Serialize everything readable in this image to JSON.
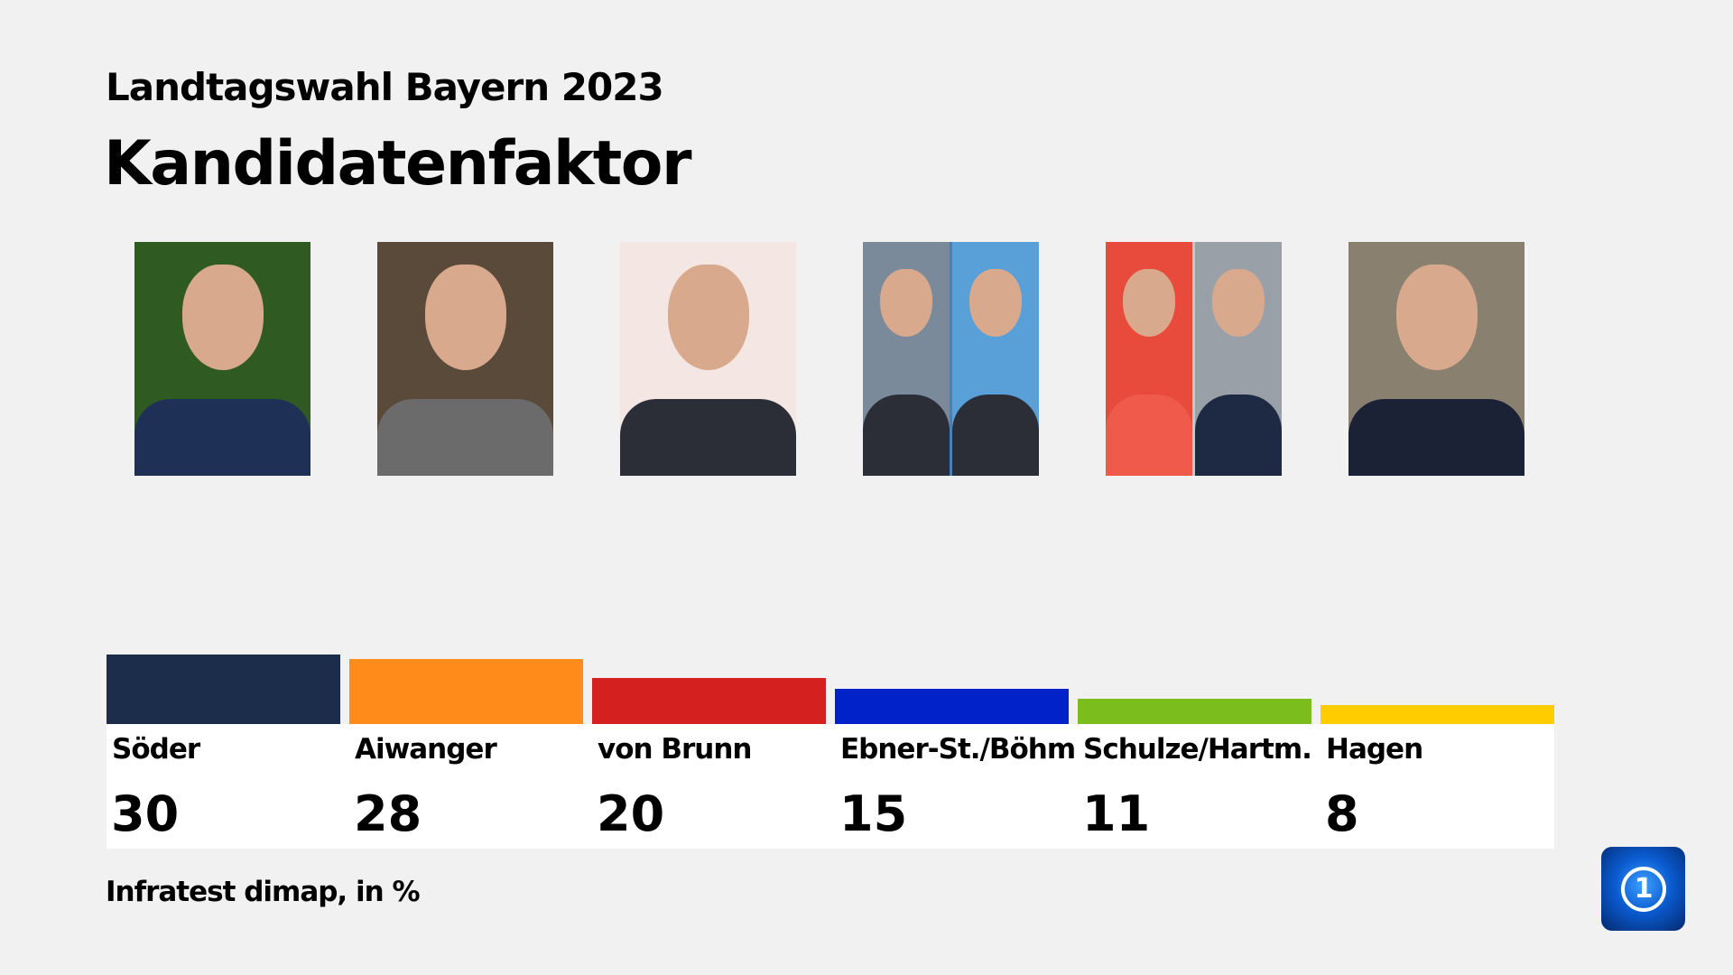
{
  "header": {
    "supertitle": "Landtagswahl Bayern 2023",
    "title": "Kandidatenfaktor"
  },
  "chart_data": {
    "type": "bar",
    "categories": [
      "Söder",
      "Aiwanger",
      "von Brunn",
      "Ebner-St./Böhm",
      "Schulze/Hartm.",
      "Hagen"
    ],
    "values": [
      30,
      28,
      20,
      15,
      11,
      8
    ],
    "colors": [
      "#1b2d4a",
      "#ff8c1a",
      "#d52020",
      "#0022c8",
      "#7cbd1e",
      "#ffcc00"
    ],
    "unit": "%"
  },
  "labels": [
    "30",
    "28",
    "20",
    "15",
    "11",
    "8"
  ],
  "footer": {
    "source": "Infratest dimap, in %"
  },
  "logo": {
    "icon": "tagesschau-logo",
    "text": "1"
  }
}
